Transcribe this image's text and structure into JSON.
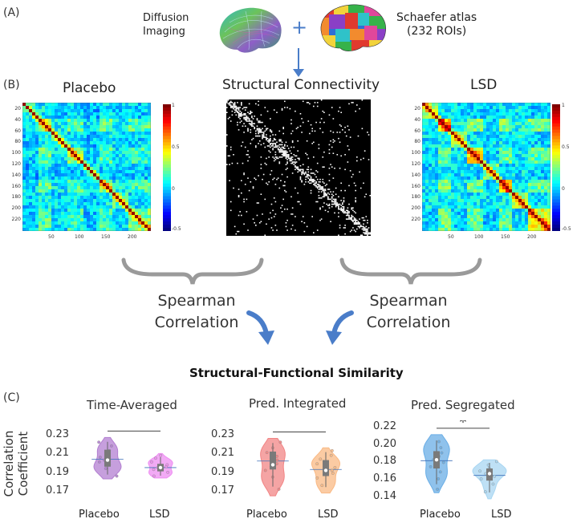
{
  "panels": {
    "a": "(A)",
    "b": "(B)",
    "c": "(C)"
  },
  "top": {
    "diffusion_line1": "Diffusion",
    "diffusion_line2": "Imaging",
    "plus": "+",
    "atlas_line1": "Schaefer atlas",
    "atlas_line2": "(232 ROIs)"
  },
  "matrices": {
    "placebo_title": "Placebo",
    "structural_title": "Structural Connectivity",
    "lsd_title": "LSD",
    "y_ticks": [
      "20",
      "40",
      "60",
      "80",
      "100",
      "120",
      "140",
      "160",
      "180",
      "200",
      "220"
    ],
    "x_ticks": [
      "50",
      "100",
      "150",
      "200"
    ],
    "colorbar_ticks": [
      "1",
      "0.5",
      "0",
      "-0.5"
    ]
  },
  "spearman": {
    "left_line1": "Spearman",
    "left_line2": "Correlation",
    "right_line1": "Spearman",
    "right_line2": "Correlation"
  },
  "similarity_title": "Structural-Functional Similarity",
  "y_axis_label_line1": "Correlation",
  "y_axis_label_line2": "Coefficient",
  "colors": {
    "placebo_time": "#b37fd1",
    "lsd_time": "#ee8ef2",
    "placebo_int": "#f28585",
    "lsd_int": "#f9b984",
    "placebo_seg": "#6aaee6",
    "lsd_seg": "#a8d6f2",
    "arrow": "#4a7dc9"
  },
  "chart_data": [
    {
      "type": "violin",
      "title": "Time-Averaged",
      "categories": [
        "Placebo",
        "LSD"
      ],
      "y_ticks": [
        "0.23",
        "0.21",
        "0.19",
        "0.17"
      ],
      "ylim": [
        0.16,
        0.235
      ],
      "series": [
        {
          "name": "Placebo",
          "min": 0.183,
          "q1": 0.196,
          "median": 0.203,
          "q3": 0.214,
          "max": 0.227,
          "mean": 0.204,
          "points": [
            0.186,
            0.194,
            0.198,
            0.201,
            0.203,
            0.206,
            0.21,
            0.213,
            0.218,
            0.222
          ]
        },
        {
          "name": "LSD",
          "min": 0.184,
          "q1": 0.191,
          "median": 0.195,
          "q3": 0.199,
          "max": 0.21,
          "mean": 0.195,
          "points": [
            0.186,
            0.19,
            0.193,
            0.195,
            0.196,
            0.198,
            0.201,
            0.205,
            0.208
          ]
        }
      ],
      "significance": {
        "between": [
          "Placebo",
          "LSD"
        ],
        "marker": ""
      }
    },
    {
      "type": "violin",
      "title": "Pred. Integrated",
      "categories": [
        "Placebo",
        "LSD"
      ],
      "y_ticks": [
        "0.23",
        "0.21",
        "0.19",
        "0.17"
      ],
      "ylim": [
        0.16,
        0.235
      ],
      "series": [
        {
          "name": "Placebo",
          "min": 0.165,
          "q1": 0.193,
          "median": 0.198,
          "q3": 0.212,
          "max": 0.226,
          "mean": 0.202,
          "points": [
            0.172,
            0.185,
            0.192,
            0.196,
            0.199,
            0.203,
            0.207,
            0.211,
            0.216,
            0.222
          ]
        },
        {
          "name": "LSD",
          "min": 0.168,
          "q1": 0.186,
          "median": 0.192,
          "q3": 0.203,
          "max": 0.216,
          "mean": 0.193,
          "points": [
            0.176,
            0.184,
            0.189,
            0.192,
            0.195,
            0.199,
            0.204,
            0.208,
            0.213
          ]
        }
      ],
      "significance": {
        "between": [
          "Placebo",
          "LSD"
        ],
        "marker": ""
      }
    },
    {
      "type": "violin",
      "title": "Pred. Segregated",
      "categories": [
        "Placebo",
        "LSD"
      ],
      "y_ticks": [
        "0.22",
        "0.20",
        "0.18",
        "0.16",
        "0.14"
      ],
      "ylim": [
        0.135,
        0.222
      ],
      "series": [
        {
          "name": "Placebo",
          "min": 0.144,
          "q1": 0.172,
          "median": 0.182,
          "q3": 0.192,
          "max": 0.211,
          "mean": 0.181,
          "points": [
            0.148,
            0.16,
            0.168,
            0.174,
            0.179,
            0.182,
            0.186,
            0.19,
            0.196,
            0.203
          ]
        },
        {
          "name": "LSD",
          "min": 0.137,
          "q1": 0.158,
          "median": 0.166,
          "q3": 0.172,
          "max": 0.182,
          "mean": 0.164,
          "points": [
            0.145,
            0.154,
            0.16,
            0.163,
            0.166,
            0.169,
            0.172,
            0.176,
            0.18
          ]
        }
      ],
      "significance": {
        "between": [
          "Placebo",
          "LSD"
        ],
        "marker": "*"
      }
    }
  ]
}
